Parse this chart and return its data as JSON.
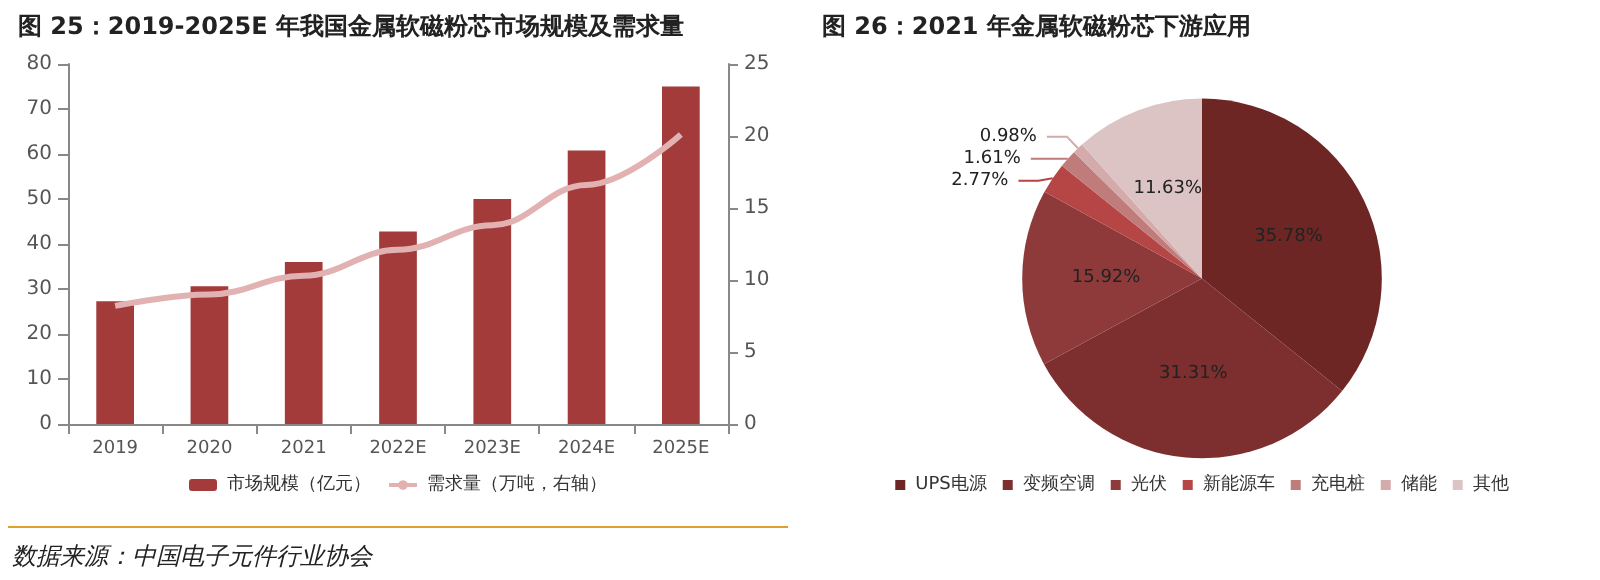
{
  "chart_data": [
    {
      "type": "bar",
      "title": "图 25：2019-2025E 年我国金属软磁粉芯市场规模及需求量",
      "categories": [
        "2019",
        "2020",
        "2021",
        "2022E",
        "2023E",
        "2024E",
        "2025E"
      ],
      "series": [
        {
          "name": "市场规模（亿元）",
          "color": "#a33b3b",
          "values": [
            27.3,
            30.6,
            36,
            42.8,
            50,
            60.8,
            75
          ]
        },
        {
          "name": "需求量（万吨，右轴）",
          "type": "line",
          "axis": "y2",
          "color": "#e2b2b2",
          "values": [
            8.2,
            9.0,
            10.3,
            12.1,
            13.8,
            16.6,
            20.1
          ]
        }
      ],
      "ylim": [
        0,
        80
      ],
      "yticks": [
        0,
        10,
        20,
        30,
        40,
        50,
        60,
        70,
        80
      ],
      "y2lim": [
        0,
        25
      ],
      "y2ticks": [
        0,
        5,
        10,
        15,
        20,
        25
      ],
      "grid": false,
      "legend": "bottom",
      "marker": "none",
      "annotations": [
        "数据来源：中国电子元件行业协会"
      ]
    },
    {
      "type": "pie",
      "title": "图 26：2021 年金属软磁粉芯下游应用",
      "categories": [
        "UPS电源",
        "变频空调",
        "光伏",
        "新能源车",
        "充电桩",
        "储能",
        "其他"
      ],
      "values": [
        35.78,
        31.31,
        15.92,
        2.77,
        1.61,
        0.98,
        11.63
      ],
      "colors": [
        "#6e2625",
        "#7d2e2e",
        "#8e3a3a",
        "#b64545",
        "#c07b7b",
        "#d4aaaa",
        "#dcc4c4"
      ],
      "value_labels": [
        "35.78%",
        "31.31%",
        "15.92%",
        "2.77%",
        "1.61%",
        "0.98%",
        "11.63%"
      ],
      "legend": "bottom"
    }
  ]
}
